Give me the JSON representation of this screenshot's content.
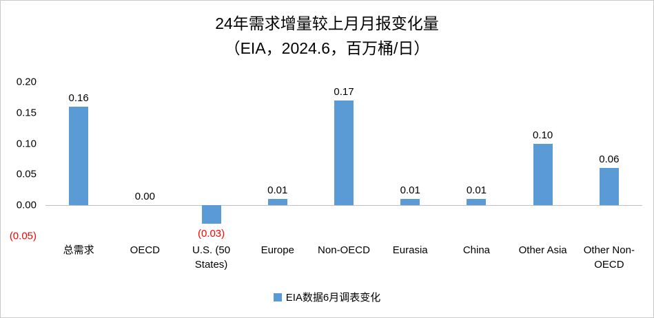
{
  "title_line1": "24年需求增量较上月月报变化量",
  "title_line2": "（EIA，2024.6，百万桶/日）",
  "legend": {
    "label": "EIA数据6月调表变化",
    "swatch_color": "#5b9bd5"
  },
  "colors": {
    "bar": "#5b9bd5",
    "negative_label": "#ff0000",
    "axis_line": "#bfbfbf",
    "text": "#000000"
  },
  "chart_data": {
    "type": "bar",
    "title": "24年需求增量较上月月报变化量（EIA，2024.6，百万桶/日）",
    "categories": [
      "总需求",
      "OECD",
      "U.S. (50 States)",
      "Europe",
      "Non-OECD",
      "Eurasia",
      "China",
      "Other Asia",
      "Other Non-OECD"
    ],
    "values": [
      0.16,
      0.0,
      -0.03,
      0.01,
      0.17,
      0.01,
      0.01,
      0.1,
      0.06
    ],
    "data_labels": [
      "0.16",
      "0.00",
      "(0.03)",
      "0.01",
      "0.17",
      "0.01",
      "0.01",
      "0.10",
      "0.06"
    ],
    "xlabel": "",
    "ylabel": "",
    "ylim": [
      -0.05,
      0.2
    ],
    "yticks": [
      0.2,
      0.15,
      0.1,
      0.05,
      0.0,
      -0.05
    ],
    "ytick_labels": [
      "0.20",
      "0.15",
      "0.10",
      "0.05",
      "0.00",
      "(0.05)"
    ],
    "grid": false,
    "legend_position": "bottom",
    "legend_entries": [
      "EIA数据6月调表变化"
    ]
  }
}
